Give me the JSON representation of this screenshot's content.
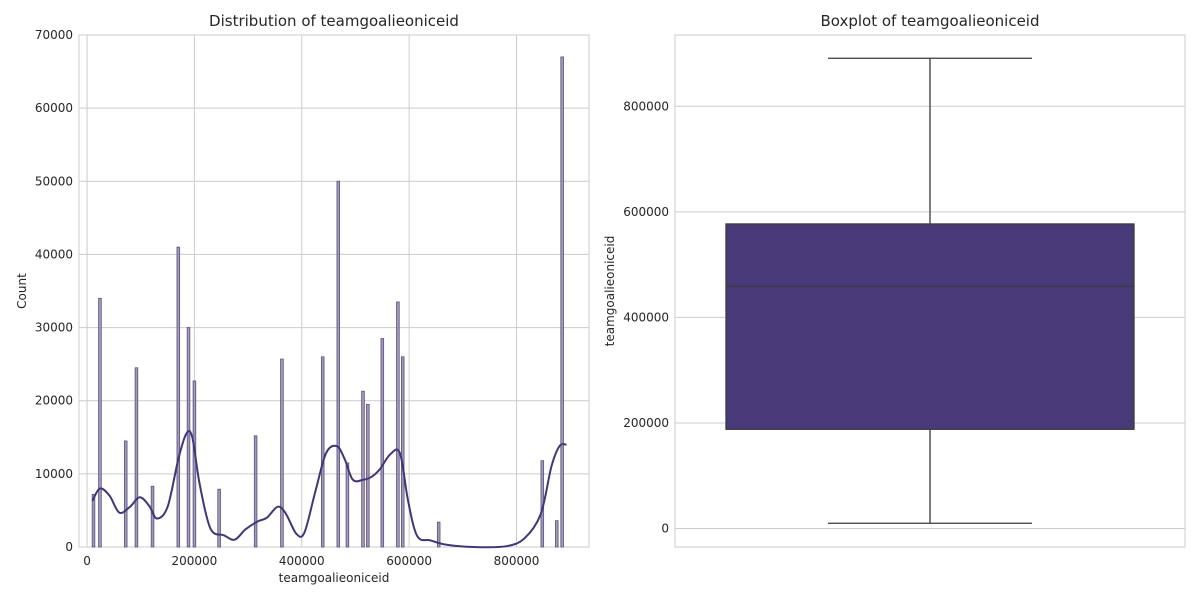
{
  "chart_data": [
    {
      "type": "bar",
      "subtype": "histogram-with-kde",
      "title": "Distribution of teamgoalieoniceid",
      "xlabel": "teamgoalieoniceid",
      "ylabel": "Count",
      "xlim": [
        -15000,
        935000
      ],
      "ylim": [
        0,
        70000
      ],
      "xticks": [
        0,
        200000,
        400000,
        600000,
        800000
      ],
      "yticks": [
        0,
        10000,
        20000,
        30000,
        40000,
        50000,
        60000,
        70000
      ],
      "grid": true,
      "bar_color": "#9d92b8",
      "line_color": "#433677",
      "bins": [
        {
          "x": 12000,
          "count": 7200
        },
        {
          "x": 24000,
          "count": 34000
        },
        {
          "x": 72000,
          "count": 14500
        },
        {
          "x": 92000,
          "count": 24500
        },
        {
          "x": 122000,
          "count": 8300
        },
        {
          "x": 170000,
          "count": 41000
        },
        {
          "x": 189000,
          "count": 30000
        },
        {
          "x": 200000,
          "count": 22700
        },
        {
          "x": 246000,
          "count": 7900
        },
        {
          "x": 314000,
          "count": 15200
        },
        {
          "x": 363000,
          "count": 25700
        },
        {
          "x": 439000,
          "count": 26000
        },
        {
          "x": 468000,
          "count": 50000
        },
        {
          "x": 485000,
          "count": 11500
        },
        {
          "x": 514000,
          "count": 21300
        },
        {
          "x": 523000,
          "count": 19500
        },
        {
          "x": 550000,
          "count": 28500
        },
        {
          "x": 579000,
          "count": 33500
        },
        {
          "x": 588000,
          "count": 26000
        },
        {
          "x": 655000,
          "count": 3400
        },
        {
          "x": 848000,
          "count": 11800
        },
        {
          "x": 875000,
          "count": 3600
        },
        {
          "x": 885000,
          "count": 67000
        }
      ],
      "kde": {
        "x": [
          10000,
          24000,
          42000,
          60000,
          80000,
          98000,
          116000,
          130000,
          150000,
          170000,
          185000,
          196000,
          210000,
          230000,
          255000,
          275000,
          295000,
          318000,
          335000,
          355000,
          370000,
          390000,
          405000,
          425000,
          445000,
          465000,
          480000,
          495000,
          515000,
          530000,
          545000,
          565000,
          583000,
          598000,
          615000,
          640000,
          670000,
          720000,
          780000,
          815000,
          845000,
          865000,
          880000,
          893000
        ],
        "y": [
          6300,
          8000,
          7000,
          4700,
          5500,
          6800,
          5600,
          3900,
          5500,
          12000,
          15500,
          15000,
          8500,
          2500,
          1600,
          1000,
          2400,
          3500,
          4000,
          5500,
          4600,
          1800,
          2000,
          7500,
          12800,
          13800,
          12000,
          9200,
          9200,
          9600,
          10600,
          12700,
          12800,
          6300,
          1500,
          900,
          300,
          0,
          100,
          1200,
          4500,
          11000,
          13800,
          14000
        ]
      }
    },
    {
      "type": "box",
      "title": "Boxplot of teamgoalieoniceid",
      "xlabel": "",
      "ylabel": "teamgoalieoniceid",
      "ylim": [
        -35000,
        935000
      ],
      "yticks": [
        0,
        200000,
        400000,
        600000,
        800000
      ],
      "grid": true,
      "box_color": "#483a78",
      "stats": {
        "whisker_low": 10000,
        "q1": 188000,
        "median": 459000,
        "q3": 577000,
        "whisker_high": 891000
      }
    }
  ]
}
